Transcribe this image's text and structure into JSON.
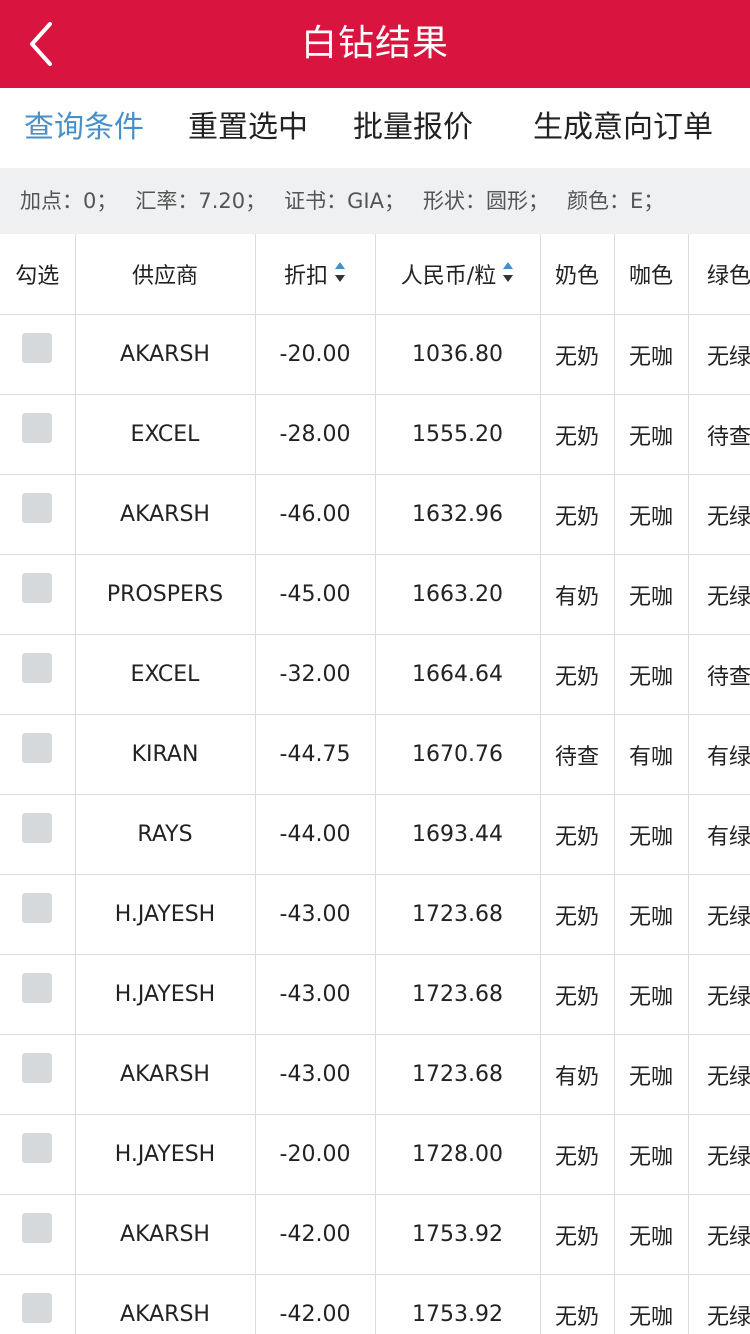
{
  "header": {
    "title": "白钻结果"
  },
  "toolbar": {
    "query_label": "查询条件",
    "reset_label": "重置选中",
    "batch_quote_label": "批量报价",
    "create_order_label": "生成意向订单"
  },
  "filters": {
    "markup": "加点：0；",
    "rate": "汇率：7.20；",
    "cert": "证书：GIA；",
    "shape": "形状：圆形；",
    "color": "颜色：E；"
  },
  "table": {
    "headers": {
      "select": "勾选",
      "supplier": "供应商",
      "discount": "折扣",
      "price": "人民币/粒",
      "milky": "奶色",
      "brown": "咖色",
      "green": "绿色"
    },
    "rows": [
      {
        "supplier": "AKARSH",
        "discount": "-20.00",
        "price": "1036.80",
        "milky": "无奶",
        "brown": "无咖",
        "green": "无绿"
      },
      {
        "supplier": "EXCEL",
        "discount": "-28.00",
        "price": "1555.20",
        "milky": "无奶",
        "brown": "无咖",
        "green": "待查"
      },
      {
        "supplier": "AKARSH",
        "discount": "-46.00",
        "price": "1632.96",
        "milky": "无奶",
        "brown": "无咖",
        "green": "无绿"
      },
      {
        "supplier": "PROSPERS",
        "discount": "-45.00",
        "price": "1663.20",
        "milky": "有奶",
        "brown": "无咖",
        "green": "无绿"
      },
      {
        "supplier": "EXCEL",
        "discount": "-32.00",
        "price": "1664.64",
        "milky": "无奶",
        "brown": "无咖",
        "green": "待查"
      },
      {
        "supplier": "KIRAN",
        "discount": "-44.75",
        "price": "1670.76",
        "milky": "待查",
        "brown": "有咖",
        "green": "有绿"
      },
      {
        "supplier": "RAYS",
        "discount": "-44.00",
        "price": "1693.44",
        "milky": "无奶",
        "brown": "无咖",
        "green": "有绿"
      },
      {
        "supplier": "H.JAYESH",
        "discount": "-43.00",
        "price": "1723.68",
        "milky": "无奶",
        "brown": "无咖",
        "green": "无绿"
      },
      {
        "supplier": "H.JAYESH",
        "discount": "-43.00",
        "price": "1723.68",
        "milky": "无奶",
        "brown": "无咖",
        "green": "无绿"
      },
      {
        "supplier": "AKARSH",
        "discount": "-43.00",
        "price": "1723.68",
        "milky": "有奶",
        "brown": "无咖",
        "green": "无绿"
      },
      {
        "supplier": "H.JAYESH",
        "discount": "-20.00",
        "price": "1728.00",
        "milky": "无奶",
        "brown": "无咖",
        "green": "无绿"
      },
      {
        "supplier": "AKARSH",
        "discount": "-42.00",
        "price": "1753.92",
        "milky": "无奶",
        "brown": "无咖",
        "green": "无绿"
      },
      {
        "supplier": "AKARSH",
        "discount": "-42.00",
        "price": "1753.92",
        "milky": "无奶",
        "brown": "无咖",
        "green": "无绿"
      }
    ]
  },
  "icons": {
    "back": "chevron-left-icon",
    "sort": "sort-arrows-icon",
    "checkbox": "checkbox-unchecked"
  },
  "colors": {
    "header_bg": "#d9143f",
    "active_tab": "#4a90c8",
    "filter_bg": "#eef0f1",
    "checkbox": "#d5d9dc"
  }
}
